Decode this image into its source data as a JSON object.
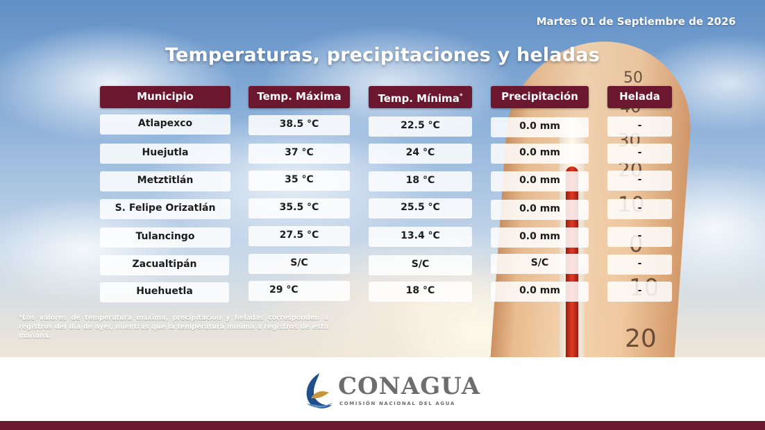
{
  "date": "Martes 01 de Septiembre de 2026",
  "title": "Temperaturas, precipitaciones y heladas",
  "columns": {
    "municipio": "Municipio",
    "tmax": "Temp. Máxima",
    "tmin": "Temp. Mínima",
    "tmin_mark": "*",
    "precip": "Precipitación",
    "helada": "Helada"
  },
  "rows": [
    {
      "municipio": "Atlapexco",
      "tmax": "38.5 °C",
      "tmin": "22.5 °C",
      "precip": "0.0 mm",
      "helada": "-"
    },
    {
      "municipio": "Huejutla",
      "tmax": "37 °C",
      "tmin": "24 °C",
      "precip": "0.0 mm",
      "helada": "-"
    },
    {
      "municipio": "Metztitlán",
      "tmax": "35 °C",
      "tmin": "18 °C",
      "precip": "0.0  mm",
      "helada": "-"
    },
    {
      "municipio": "S. Felipe Orizatlán",
      "tmax": "35.5 °C",
      "tmin": "25.5 °C",
      "precip": "0.0 mm",
      "helada": "-"
    },
    {
      "municipio": "Tulancingo",
      "tmax": "27.5 °C",
      "tmin": "13.4 °C",
      "precip": "0.0 mm",
      "helada": "-"
    },
    {
      "municipio": "Zacualtipán",
      "tmax": "S/C",
      "tmin": "S/C",
      "precip": "S/C",
      "helada": "-"
    },
    {
      "municipio": "Huehuetla",
      "tmax": "29 °C",
      "tmin": "18 °C",
      "precip": "0.0 mm",
      "helada": "-"
    }
  ],
  "footnote": "*Los valores de temperatura máxima, precipitación y heladas corresponden a registros del día de ayer, mientras que la temperatura mínima a registros de esta mañana.",
  "background_scale": [
    "50",
    "40",
    "30",
    "20",
    "10",
    "0",
    "10",
    "20"
  ],
  "brand": {
    "name": "CONAGUA",
    "subtitle": "COMISIÓN NACIONAL DEL AGUA"
  },
  "colors": {
    "accent": "#6b1730",
    "brand_gray": "#6d6d6d",
    "logo_blue": "#1f4f8a",
    "logo_gold": "#c8953a"
  }
}
